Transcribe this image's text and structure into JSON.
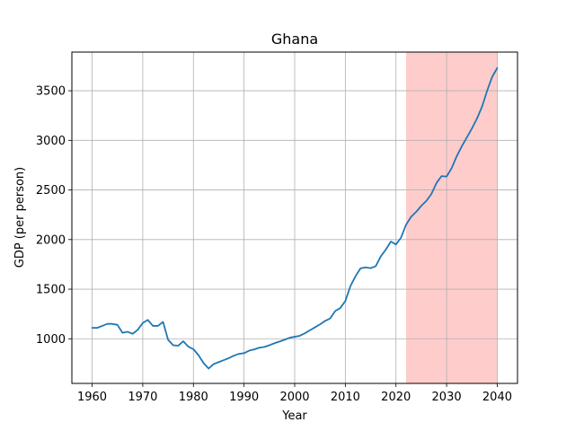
{
  "chart_data": {
    "type": "line",
    "title": "Ghana",
    "xlabel": "Year",
    "ylabel": "GDP (per person)",
    "xlim": [
      1956,
      2044
    ],
    "ylim": [
      550,
      3890
    ],
    "x_ticks": [
      1960,
      1970,
      1980,
      1990,
      2000,
      2010,
      2020,
      2030,
      2040
    ],
    "y_ticks": [
      1000,
      1500,
      2000,
      2500,
      3000,
      3500
    ],
    "grid": true,
    "highlight_region": {
      "x_start": 2022,
      "x_end": 2040,
      "color": "#ffcccc"
    },
    "series": [
      {
        "color": "#1f77b4",
        "x": [
          1960,
          1961,
          1962,
          1963,
          1964,
          1965,
          1966,
          1967,
          1968,
          1969,
          1970,
          1971,
          1972,
          1973,
          1974,
          1975,
          1976,
          1977,
          1978,
          1979,
          1980,
          1981,
          1982,
          1983,
          1984,
          1985,
          1986,
          1987,
          1988,
          1989,
          1990,
          1991,
          1992,
          1993,
          1994,
          1995,
          1996,
          1997,
          1998,
          1999,
          2000,
          2001,
          2002,
          2003,
          2004,
          2005,
          2006,
          2007,
          2008,
          2009,
          2010,
          2011,
          2012,
          2013,
          2014,
          2015,
          2016,
          2017,
          2018,
          2019,
          2020,
          2021,
          2022,
          2023,
          2024,
          2025,
          2026,
          2027,
          2028,
          2029,
          2030,
          2031,
          2032,
          2033,
          2034,
          2035,
          2036,
          2037,
          2038,
          2039,
          2040
        ],
        "values": [
          1110,
          1110,
          1130,
          1150,
          1150,
          1140,
          1060,
          1070,
          1050,
          1090,
          1160,
          1190,
          1130,
          1130,
          1170,
          990,
          935,
          930,
          975,
          920,
          895,
          835,
          755,
          700,
          745,
          765,
          785,
          805,
          830,
          848,
          855,
          880,
          893,
          910,
          918,
          935,
          955,
          972,
          990,
          1010,
          1020,
          1030,
          1055,
          1085,
          1115,
          1145,
          1180,
          1205,
          1280,
          1310,
          1380,
          1530,
          1630,
          1710,
          1720,
          1712,
          1732,
          1830,
          1900,
          1980,
          1950,
          2020,
          2150,
          2230,
          2280,
          2340,
          2390,
          2460,
          2570,
          2640,
          2635,
          2720,
          2840,
          2940,
          3030,
          3120,
          3220,
          3340,
          3500,
          3640,
          3730
        ]
      }
    ]
  }
}
